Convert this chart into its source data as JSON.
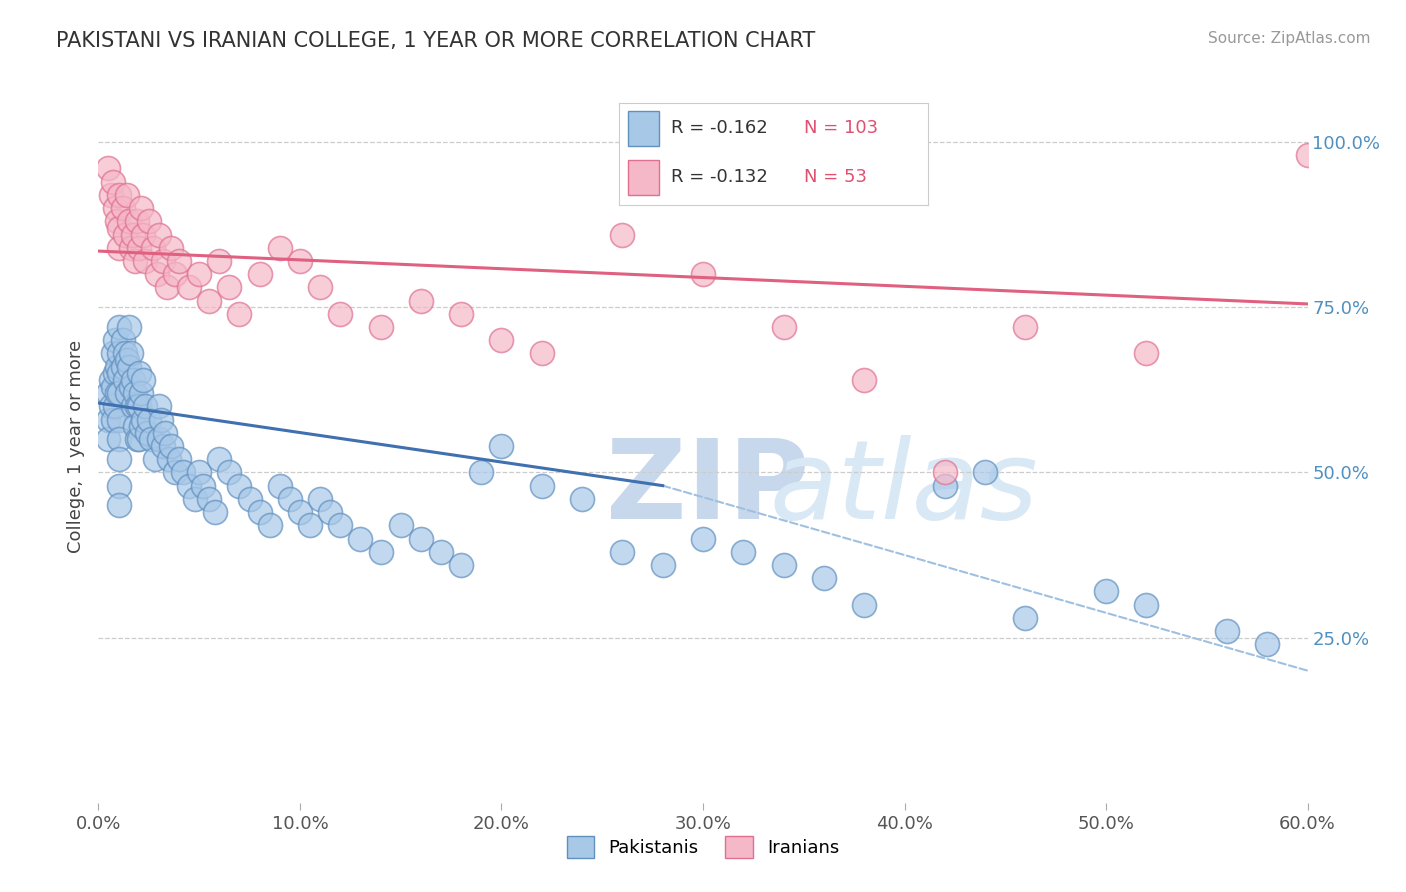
{
  "title": "PAKISTANI VS IRANIAN COLLEGE, 1 YEAR OR MORE CORRELATION CHART",
  "source": "Source: ZipAtlas.com",
  "ylabel": "College, 1 year or more",
  "xlim": [
    0.0,
    0.6
  ],
  "ylim": [
    0.0,
    1.08
  ],
  "xtick_labels": [
    "0.0%",
    "10.0%",
    "20.0%",
    "30.0%",
    "40.0%",
    "50.0%",
    "60.0%"
  ],
  "xtick_vals": [
    0.0,
    0.1,
    0.2,
    0.3,
    0.4,
    0.5,
    0.6
  ],
  "ytick_labels_right": [
    "100.0%",
    "75.0%",
    "50.0%",
    "25.0%"
  ],
  "ytick_vals_right": [
    1.0,
    0.75,
    0.5,
    0.25
  ],
  "grid_color": "#cccccc",
  "background_color": "#ffffff",
  "watermark_zip": "ZIP",
  "watermark_atlas": "atlas",
  "watermark_color": "#dce8f5",
  "blue_R": "-0.162",
  "blue_N": "103",
  "pink_R": "-0.132",
  "pink_N": "53",
  "pakistani_color": "#a8c8e8",
  "iranian_color": "#f5b8c8",
  "pakistani_edge": "#6090c0",
  "iranian_edge": "#e07090",
  "blue_line_color": "#4070b0",
  "pink_line_color": "#e06080",
  "dashed_line_color": "#a0c0e0",
  "legend_text_color": "#333333",
  "legend_N_color": "#e05070",
  "pakistani_x": [
    0.005,
    0.005,
    0.005,
    0.006,
    0.006,
    0.007,
    0.007,
    0.007,
    0.008,
    0.008,
    0.008,
    0.009,
    0.009,
    0.01,
    0.01,
    0.01,
    0.01,
    0.01,
    0.01,
    0.01,
    0.01,
    0.01,
    0.012,
    0.012,
    0.013,
    0.013,
    0.014,
    0.014,
    0.015,
    0.015,
    0.016,
    0.016,
    0.017,
    0.017,
    0.018,
    0.018,
    0.019,
    0.019,
    0.02,
    0.02,
    0.02,
    0.021,
    0.021,
    0.022,
    0.022,
    0.023,
    0.024,
    0.025,
    0.026,
    0.028,
    0.03,
    0.03,
    0.031,
    0.032,
    0.033,
    0.035,
    0.036,
    0.038,
    0.04,
    0.042,
    0.045,
    0.048,
    0.05,
    0.052,
    0.055,
    0.058,
    0.06,
    0.065,
    0.07,
    0.075,
    0.08,
    0.085,
    0.09,
    0.095,
    0.1,
    0.105,
    0.11,
    0.115,
    0.12,
    0.13,
    0.14,
    0.15,
    0.16,
    0.17,
    0.18,
    0.19,
    0.2,
    0.22,
    0.24,
    0.26,
    0.28,
    0.3,
    0.32,
    0.34,
    0.36,
    0.38,
    0.42,
    0.44,
    0.46,
    0.5,
    0.52,
    0.56,
    0.58
  ],
  "pakistani_y": [
    0.62,
    0.58,
    0.55,
    0.64,
    0.6,
    0.68,
    0.63,
    0.58,
    0.7,
    0.65,
    0.6,
    0.66,
    0.62,
    0.72,
    0.68,
    0.65,
    0.62,
    0.58,
    0.55,
    0.52,
    0.48,
    0.45,
    0.7,
    0.66,
    0.68,
    0.64,
    0.67,
    0.62,
    0.72,
    0.66,
    0.68,
    0.63,
    0.64,
    0.6,
    0.62,
    0.57,
    0.6,
    0.55,
    0.65,
    0.6,
    0.55,
    0.62,
    0.57,
    0.64,
    0.58,
    0.6,
    0.56,
    0.58,
    0.55,
    0.52,
    0.6,
    0.55,
    0.58,
    0.54,
    0.56,
    0.52,
    0.54,
    0.5,
    0.52,
    0.5,
    0.48,
    0.46,
    0.5,
    0.48,
    0.46,
    0.44,
    0.52,
    0.5,
    0.48,
    0.46,
    0.44,
    0.42,
    0.48,
    0.46,
    0.44,
    0.42,
    0.46,
    0.44,
    0.42,
    0.4,
    0.38,
    0.42,
    0.4,
    0.38,
    0.36,
    0.5,
    0.54,
    0.48,
    0.46,
    0.38,
    0.36,
    0.4,
    0.38,
    0.36,
    0.34,
    0.3,
    0.48,
    0.5,
    0.28,
    0.32,
    0.3,
    0.26,
    0.24
  ],
  "iranian_x": [
    0.005,
    0.006,
    0.007,
    0.008,
    0.009,
    0.01,
    0.01,
    0.01,
    0.012,
    0.013,
    0.014,
    0.015,
    0.016,
    0.017,
    0.018,
    0.019,
    0.02,
    0.021,
    0.022,
    0.023,
    0.025,
    0.027,
    0.029,
    0.03,
    0.032,
    0.034,
    0.036,
    0.038,
    0.04,
    0.045,
    0.05,
    0.055,
    0.06,
    0.065,
    0.07,
    0.08,
    0.09,
    0.1,
    0.11,
    0.12,
    0.14,
    0.16,
    0.18,
    0.2,
    0.22,
    0.26,
    0.3,
    0.34,
    0.38,
    0.42,
    0.46,
    0.52,
    0.6
  ],
  "iranian_y": [
    0.96,
    0.92,
    0.94,
    0.9,
    0.88,
    0.92,
    0.87,
    0.84,
    0.9,
    0.86,
    0.92,
    0.88,
    0.84,
    0.86,
    0.82,
    0.88,
    0.84,
    0.9,
    0.86,
    0.82,
    0.88,
    0.84,
    0.8,
    0.86,
    0.82,
    0.78,
    0.84,
    0.8,
    0.82,
    0.78,
    0.8,
    0.76,
    0.82,
    0.78,
    0.74,
    0.8,
    0.84,
    0.82,
    0.78,
    0.74,
    0.72,
    0.76,
    0.74,
    0.7,
    0.68,
    0.86,
    0.8,
    0.72,
    0.64,
    0.5,
    0.72,
    0.68,
    0.98
  ],
  "blue_trend_x": [
    0.0,
    0.28
  ],
  "blue_trend_y": [
    0.605,
    0.48
  ],
  "dashed_line_x": [
    0.28,
    0.6
  ],
  "dashed_line_y": [
    0.48,
    0.2
  ],
  "pink_trend_x": [
    0.0,
    0.6
  ],
  "pink_trend_y": [
    0.835,
    0.755
  ]
}
